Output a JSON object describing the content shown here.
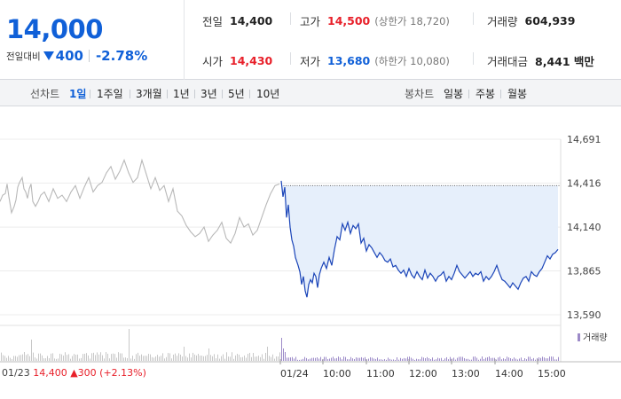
{
  "quote": {
    "price": "14,000",
    "change_label": "전일대비",
    "change_amount": "400",
    "change_pct": "-2.78%"
  },
  "info": {
    "prev_label": "전일",
    "prev_value": "14,400",
    "high_label": "고가",
    "high_value": "14,500",
    "upper_limit": "(상한가 18,720)",
    "volume_label": "거래량",
    "volume_value": "604,939",
    "open_label": "시가",
    "open_value": "14,430",
    "low_label": "저가",
    "low_value": "13,680",
    "lower_limit": "(하한가 10,080)",
    "amount_label": "거래대금",
    "amount_value": "8,441 백만"
  },
  "tabs": {
    "line_label": "선차트",
    "line_items": [
      "1일",
      "1주일",
      "3개월",
      "1년",
      "3년",
      "5년",
      "10년"
    ],
    "active": "1일",
    "candle_label": "봉차트",
    "candle_items": [
      "일봉",
      "주봉",
      "월봉"
    ]
  },
  "footer": {
    "date": "01/23",
    "price": "14,400",
    "change": "300",
    "pct": "(+2.13%)"
  },
  "colors": {
    "up": "#e8202a",
    "down": "#1060d8",
    "today_line": "#1a44b8",
    "today_fill": "#e6effb",
    "prev_line": "#b8b8b8",
    "volume_today": "#9c8ac8",
    "volume_prev": "#c8c8c8"
  },
  "chart_data": {
    "type": "line",
    "ylim": [
      13590,
      14691
    ],
    "y_ticks": [
      "14,691",
      "14,416",
      "14,140",
      "13,865",
      "13,590"
    ],
    "x_ticks": [
      "01/24",
      "10:00",
      "11:00",
      "12:00",
      "13:00",
      "14:00",
      "15:00"
    ],
    "reference_line": 14400,
    "prev_day_label": "01/23",
    "volume_legend": "거래량",
    "series": [
      {
        "x": [
          0,
          3,
          6,
          8,
          10,
          13,
          16,
          18,
          20,
          22,
          25,
          27,
          29,
          31,
          33,
          35,
          37,
          40,
          43,
          46,
          50,
          55,
          60,
          65,
          70,
          75,
          80,
          85,
          90,
          95,
          100,
          105,
          110,
          115,
          120,
          125,
          130,
          135,
          140,
          145,
          150,
          155,
          160,
          165,
          170,
          175,
          180,
          185,
          190,
          195,
          200,
          205,
          210,
          215,
          220,
          225,
          230,
          235,
          240,
          245,
          250,
          255,
          260,
          265,
          270,
          275,
          280,
          285,
          290,
          295,
          300,
          305,
          310,
          315
        ],
        "values": [
          14300,
          14340,
          14350,
          14410,
          14330,
          14230,
          14270,
          14310,
          14390,
          14420,
          14450,
          14380,
          14360,
          14320,
          14380,
          14410,
          14300,
          14270,
          14300,
          14340,
          14360,
          14300,
          14380,
          14320,
          14340,
          14300,
          14360,
          14400,
          14320,
          14390,
          14450,
          14360,
          14400,
          14420,
          14480,
          14520,
          14440,
          14490,
          14560,
          14480,
          14420,
          14450,
          14560,
          14470,
          14380,
          14450,
          14370,
          14400,
          14300,
          14380,
          14240,
          14210,
          14150,
          14110,
          14080,
          14100,
          14140,
          14050,
          14090,
          14120,
          14170,
          14070,
          14040,
          14100,
          14200,
          14140,
          14160,
          14090,
          14120,
          14200,
          14280,
          14350,
          14400,
          14410
        ]
      },
      {
        "x": [
          317,
          319,
          321,
          323,
          325,
          327,
          329,
          331,
          333,
          336,
          338,
          340,
          342,
          344,
          346,
          348,
          350,
          352,
          354,
          356,
          358,
          360,
          362,
          365,
          368,
          371,
          374,
          377,
          380,
          383,
          386,
          389,
          392,
          395,
          398,
          401,
          404,
          407,
          410,
          413,
          416,
          419,
          422,
          425,
          428,
          431,
          434,
          437,
          440,
          443,
          446,
          449,
          452,
          455,
          458,
          461,
          464,
          467,
          470,
          473,
          476,
          479,
          482,
          485,
          488,
          491,
          494,
          497,
          500,
          503,
          506,
          509,
          512,
          515,
          518,
          521,
          524,
          527,
          530,
          533,
          536,
          539,
          542,
          545,
          548,
          551,
          554,
          557,
          560,
          563,
          566,
          569,
          572,
          575,
          578,
          581,
          584,
          587,
          590,
          593,
          596,
          599,
          602,
          605,
          608,
          611,
          614,
          617,
          620,
          623,
          626,
          629
        ],
        "values": [
          14430,
          14330,
          14390,
          14200,
          14280,
          14140,
          14060,
          14020,
          13950,
          13900,
          13860,
          13780,
          13830,
          13740,
          13700,
          13780,
          13810,
          13790,
          13850,
          13830,
          13760,
          13840,
          13880,
          13920,
          13880,
          13950,
          13900,
          14000,
          14080,
          14060,
          14160,
          14120,
          14170,
          14100,
          14150,
          14130,
          14160,
          14040,
          14070,
          13990,
          14030,
          14010,
          13980,
          13950,
          13980,
          13960,
          13930,
          13920,
          13940,
          13890,
          13900,
          13870,
          13850,
          13870,
          13830,
          13880,
          13840,
          13820,
          13860,
          13830,
          13810,
          13870,
          13820,
          13850,
          13830,
          13800,
          13830,
          13840,
          13860,
          13800,
          13830,
          13810,
          13850,
          13900,
          13860,
          13840,
          13820,
          13840,
          13860,
          13830,
          13850,
          13840,
          13860,
          13800,
          13830,
          13810,
          13830,
          13860,
          13900,
          13850,
          13810,
          13800,
          13780,
          13760,
          13790,
          13770,
          13750,
          13790,
          13820,
          13830,
          13800,
          13860,
          13840,
          13830,
          13860,
          13880,
          13920,
          13960,
          13940,
          13970,
          13980,
          14000
        ]
      }
    ]
  }
}
